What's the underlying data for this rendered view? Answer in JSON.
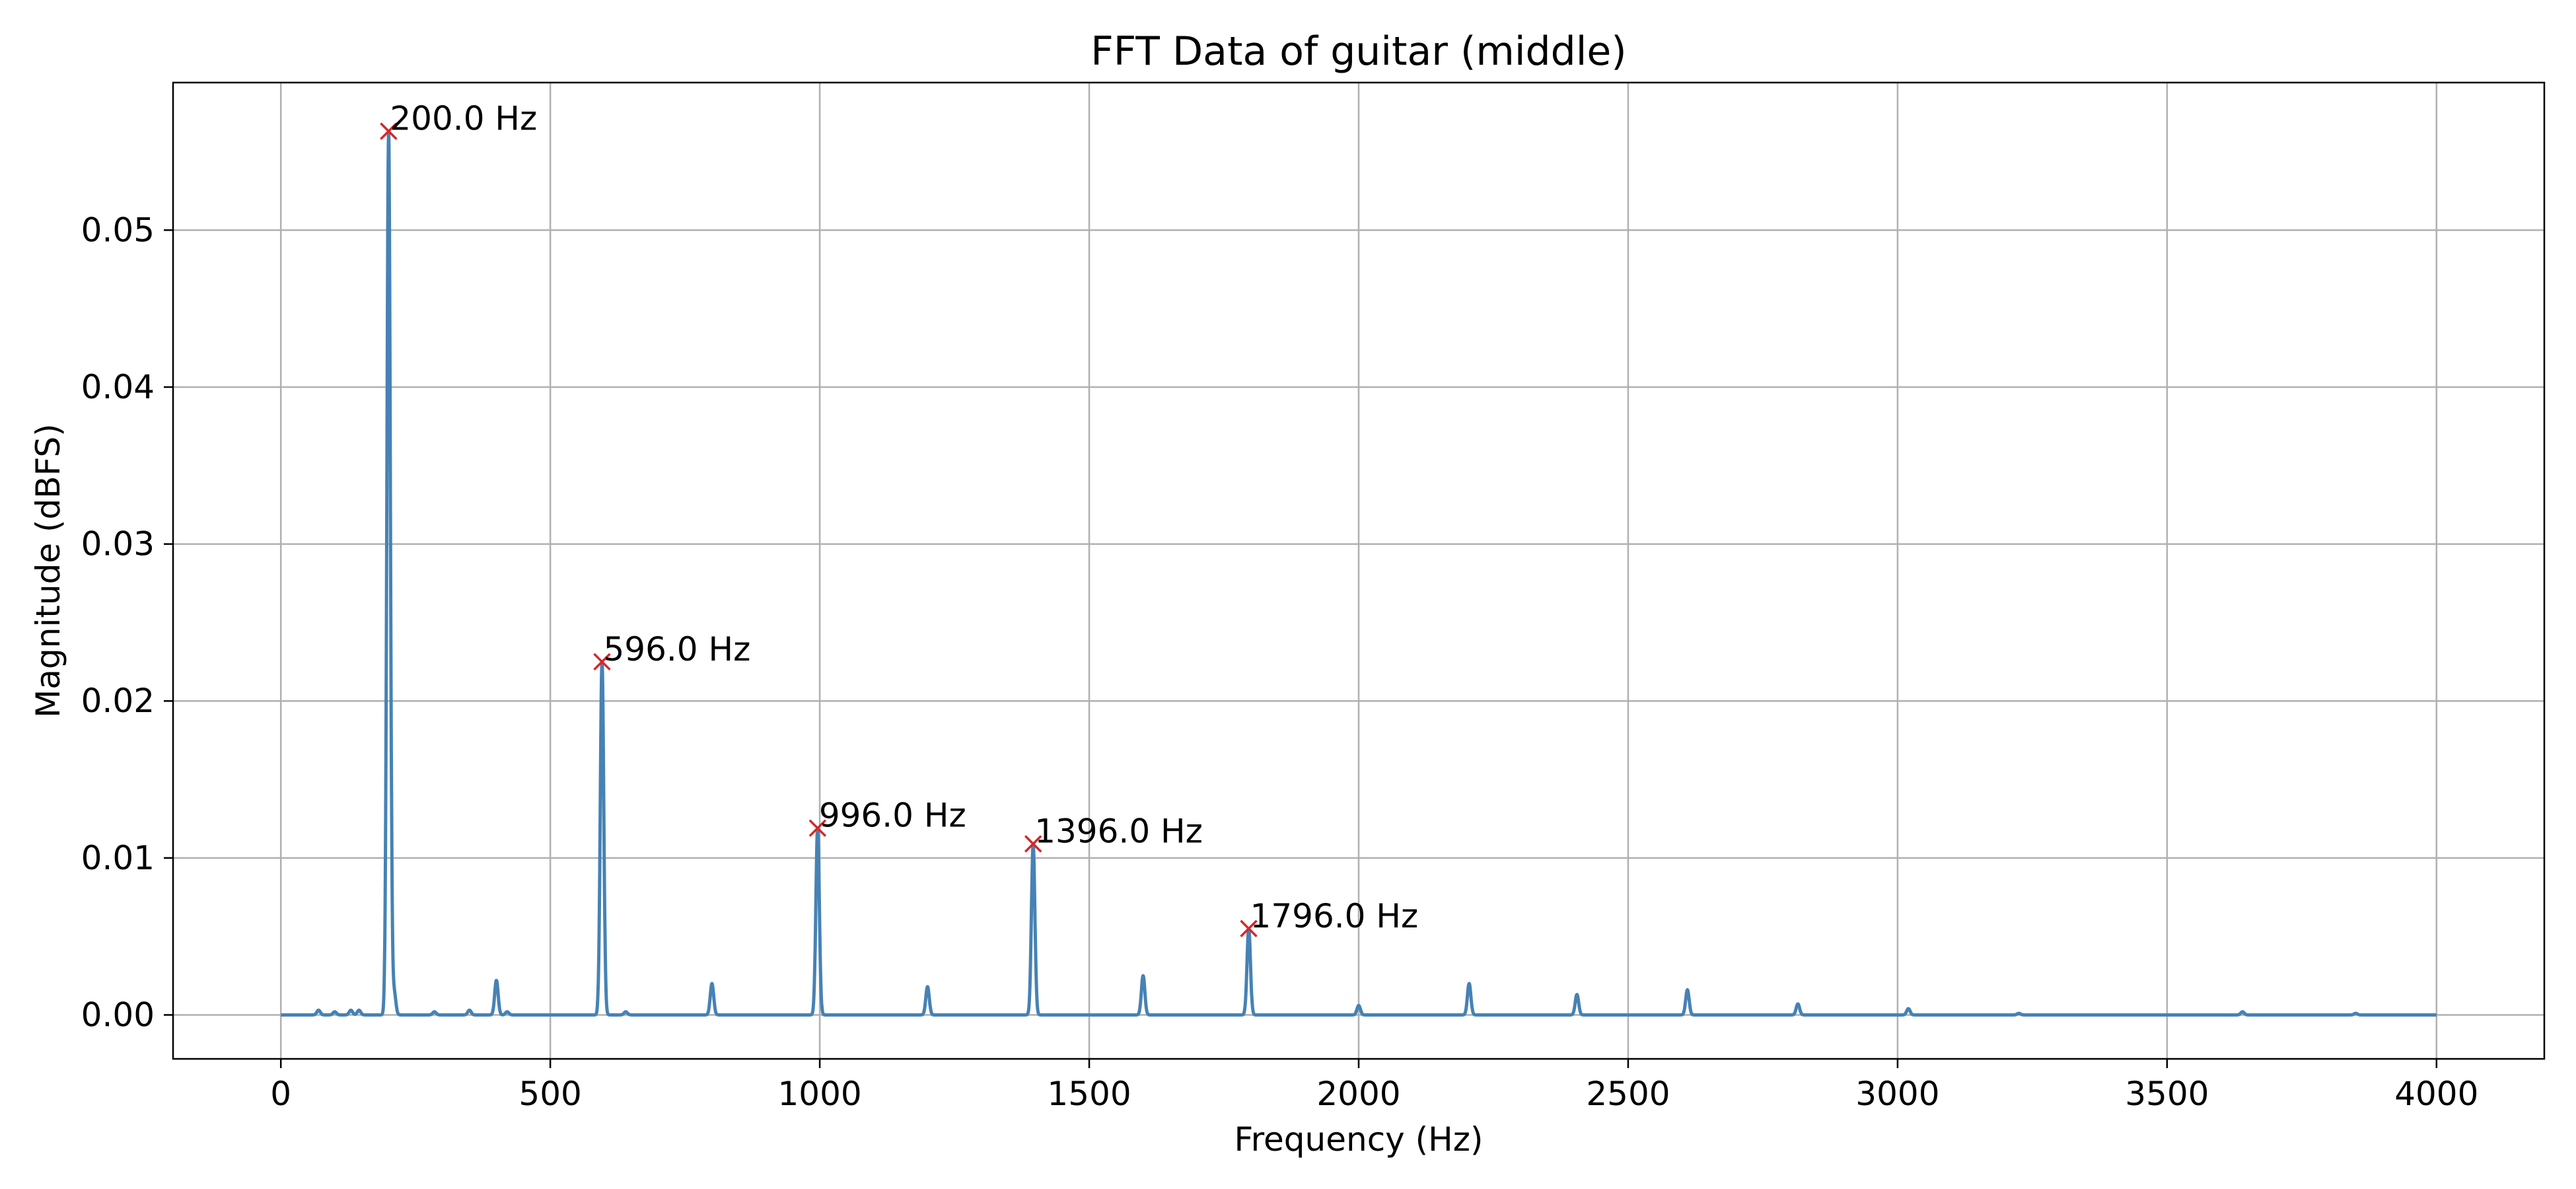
{
  "chart_data": {
    "type": "line",
    "title": "FFT Data of guitar (middle)",
    "xlabel": "Frequency (Hz)",
    "ylabel": "Magnitude (dBFS)",
    "xlim": [
      -200,
      4200
    ],
    "ylim": [
      -0.0028,
      0.0594
    ],
    "grid": true,
    "xticks": [
      0,
      500,
      1000,
      1500,
      2000,
      2500,
      3000,
      3500,
      4000
    ],
    "xtick_labels": [
      "0",
      "500",
      "1000",
      "1500",
      "2000",
      "2500",
      "3000",
      "3500",
      "4000"
    ],
    "yticks": [
      0.0,
      0.01,
      0.02,
      0.03,
      0.04,
      0.05
    ],
    "ytick_labels": [
      "0.00",
      "0.01",
      "0.02",
      "0.03",
      "0.04",
      "0.05"
    ],
    "series": [
      {
        "color": "#4682b4",
        "peaks": [
          {
            "x": 70,
            "y": 0.0003
          },
          {
            "x": 100,
            "y": 0.0002
          },
          {
            "x": 130,
            "y": 0.0003
          },
          {
            "x": 145,
            "y": 0.0003
          },
          {
            "x": 200,
            "y": 0.0563
          },
          {
            "x": 210,
            "y": 0.0015
          },
          {
            "x": 285,
            "y": 0.0002
          },
          {
            "x": 350,
            "y": 0.0003
          },
          {
            "x": 400,
            "y": 0.0022
          },
          {
            "x": 420,
            "y": 0.0002
          },
          {
            "x": 596,
            "y": 0.0225
          },
          {
            "x": 640,
            "y": 0.0002
          },
          {
            "x": 800,
            "y": 0.002
          },
          {
            "x": 996,
            "y": 0.0119
          },
          {
            "x": 1200,
            "y": 0.0018
          },
          {
            "x": 1396,
            "y": 0.0109
          },
          {
            "x": 1600,
            "y": 0.0025
          },
          {
            "x": 1796,
            "y": 0.0055
          },
          {
            "x": 2000,
            "y": 0.0006
          },
          {
            "x": 2205,
            "y": 0.002
          },
          {
            "x": 2405,
            "y": 0.0013
          },
          {
            "x": 2610,
            "y": 0.0016
          },
          {
            "x": 2815,
            "y": 0.0007
          },
          {
            "x": 3020,
            "y": 0.0004
          },
          {
            "x": 3225,
            "y": 0.0001
          },
          {
            "x": 3640,
            "y": 0.0002
          },
          {
            "x": 3850,
            "y": 0.0001
          }
        ],
        "x_start": 0,
        "x_end": 4000
      }
    ],
    "annotations": [
      {
        "x": 200,
        "y": 0.0563,
        "label": "200.0 Hz"
      },
      {
        "x": 596,
        "y": 0.0225,
        "label": "596.0 Hz"
      },
      {
        "x": 996,
        "y": 0.0119,
        "label": "996.0 Hz"
      },
      {
        "x": 1396,
        "y": 0.0109,
        "label": "1396.0 Hz"
      },
      {
        "x": 1796,
        "y": 0.0055,
        "label": "1796.0 Hz"
      }
    ],
    "marker_color": "#d62728"
  }
}
